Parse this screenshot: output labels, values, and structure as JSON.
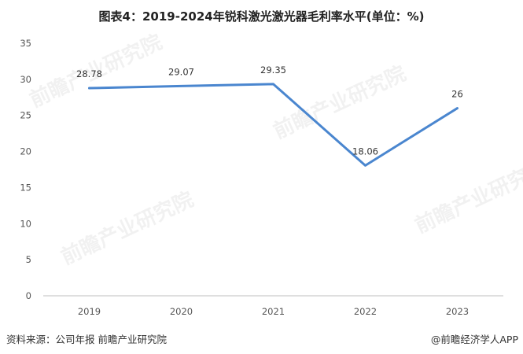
{
  "title": "图表4：2019-2024年锐科激光激光器毛利率水平(单位：%)",
  "footer": {
    "source": "资料来源：公司年报 前瞻产业研究院",
    "brand": "@前瞻经济学人APP"
  },
  "watermark": "前瞻产业研究院",
  "colors": {
    "line": "#4a86cf",
    "axis": "#bfbfbf",
    "tick_text": "#555555"
  },
  "chart_data": {
    "type": "line",
    "title": "图表4：2019-2024年锐科激光激光器毛利率水平(单位：%)",
    "categories": [
      "2019",
      "2020",
      "2021",
      "2022",
      "2023"
    ],
    "values": [
      28.78,
      29.07,
      29.35,
      18.06,
      26
    ],
    "data_labels": [
      "28.78",
      "29.07",
      "29.35",
      "18.06",
      "26"
    ],
    "yticks": [
      0,
      5,
      10,
      15,
      20,
      25,
      30,
      35
    ],
    "ylim": [
      0,
      35
    ],
    "xlabel": "",
    "ylabel": "",
    "grid": false,
    "legend": "none"
  }
}
